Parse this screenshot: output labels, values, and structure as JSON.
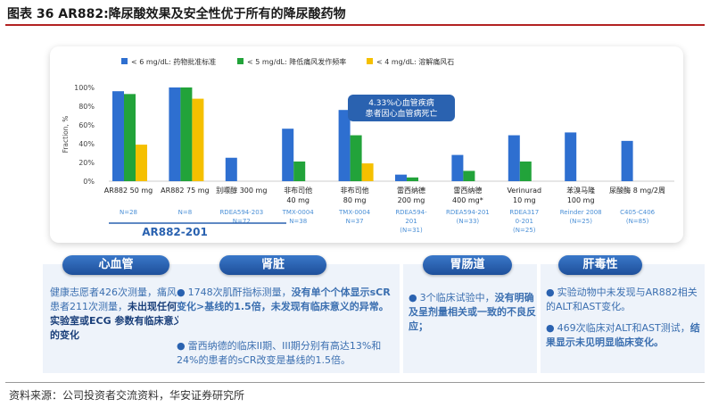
{
  "page": {
    "title": "图表 36 AR882:降尿酸效果及安全性优于所有的降尿酸药物",
    "footer": "资料来源：公司投资者交流资料，华安证券研究所"
  },
  "chart_data": {
    "type": "bar",
    "ylabel": "Fraction, %",
    "ylim": [
      0,
      100
    ],
    "yticks": [
      "0%",
      "20%",
      "40%",
      "60%",
      "80%",
      "100%"
    ],
    "categories": [
      [
        "AR882 50 mg"
      ],
      [
        "AR882 75 mg"
      ],
      [
        "别嘌醇 300 mg"
      ],
      [
        "非布司他",
        "40 mg"
      ],
      [
        "非布司他",
        "80 mg"
      ],
      [
        "雷西纳德",
        "200 mg"
      ],
      [
        "雷西纳德",
        "400 mg*"
      ],
      [
        "Verinurad",
        "10 mg"
      ],
      [
        "苯溴马隆",
        "100 mg"
      ],
      [
        "尿酸酶 8 mg/2周"
      ]
    ],
    "sublabels": [
      [
        "N=28"
      ],
      [
        "N=8"
      ],
      [
        "RDEA594-203",
        "N=72"
      ],
      [
        "TMX-0004",
        "N=38"
      ],
      [
        "TMX-0004",
        "N=37"
      ],
      [
        "RDEA594-",
        "201",
        "(N=31)"
      ],
      [
        "RDEA594-201",
        "(N=33)"
      ],
      [
        "RDEA317",
        "0-201",
        "(N=25)"
      ],
      [
        "Reinder 2008",
        "(N=25)"
      ],
      [
        "C405-C406",
        "(N=85)"
      ]
    ],
    "series": [
      {
        "name": "< 6 mg/dL: 药物批准标准",
        "color": "#2e6fd0",
        "values": [
          96,
          100,
          25,
          56,
          76,
          7,
          28,
          49,
          52,
          43
        ]
      },
      {
        "name": "< 5 mg/dL: 降低痛风发作频率",
        "color": "#22a33a",
        "values": [
          93,
          100,
          null,
          21,
          49,
          4,
          11,
          21,
          null,
          null
        ]
      },
      {
        "name": "< 4 mg/dL: 溶解痛风石",
        "color": "#f5c000",
        "values": [
          39,
          88,
          null,
          null,
          19,
          null,
          null,
          null,
          null,
          null
        ]
      }
    ],
    "annotation": [
      "4.33%心血管疾病",
      "患者因心血管病死亡"
    ],
    "study_label": "AR882-201"
  },
  "sections": {
    "cardio": {
      "title": "心血管",
      "text_plain": "健康志愿者426次测量，痛风患者211次测量，",
      "text_bold": "未出现任何实验室或ECG 参数有临床意义的变化"
    },
    "kidney": {
      "title": "肾脏",
      "b1_plain1": "1748次肌酐指标测量，",
      "b1_bold1": "没有单个个体显示sCR变化>基线的1.5倍，未发现有临床意义的异常。",
      "b2_plain": "雷西纳德的临床II期、III期分别有高达13%和24%的患者的sCR改变是基线的1.5倍。"
    },
    "gi": {
      "title": "胃肠道",
      "b1_plain": "3个临床试验中，",
      "b1_bold": "没有明确及呈剂量相关或一致的不良反应；"
    },
    "liver": {
      "title": "肝毒性",
      "b1_plain": "实验动物中未发现与AR882相关的ALT和AST变化。",
      "b2_plain": "469次临床对ALT和AST测试，",
      "b2_bold": "结果显示未见明显临床变化。"
    }
  }
}
